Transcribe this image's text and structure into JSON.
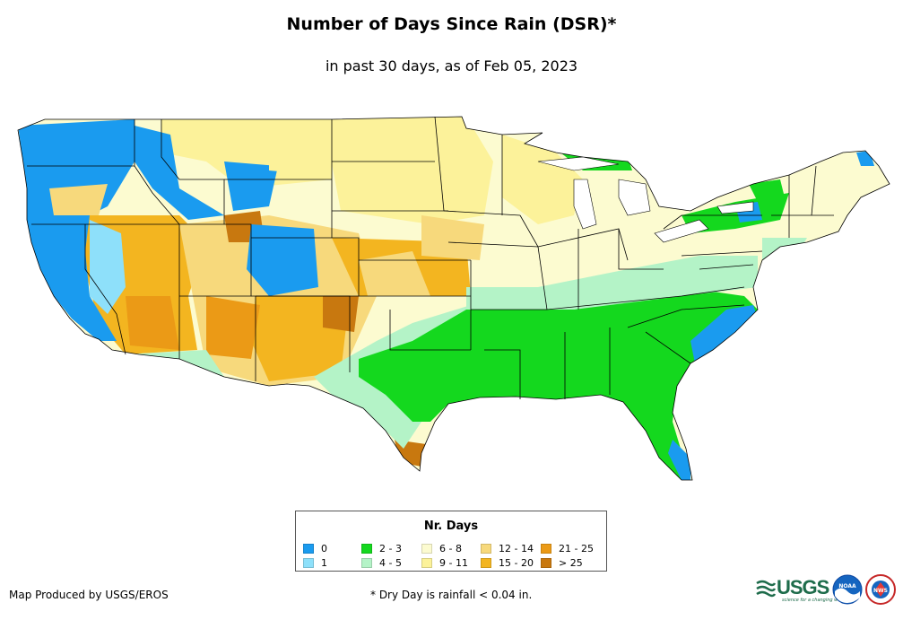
{
  "title": "Number of Days Since Rain (DSR)*",
  "subtitle": "in past 30 days, as of Feb 05, 2023",
  "legend": {
    "title": "Nr. Days",
    "items": [
      {
        "label": "0",
        "color": "#1a9bef"
      },
      {
        "label": "1",
        "color": "#8ee0fa"
      },
      {
        "label": "2 - 3",
        "color": "#14d81e"
      },
      {
        "label": "4 - 5",
        "color": "#b4f3c7"
      },
      {
        "label": "6 - 8",
        "color": "#fcfbd0"
      },
      {
        "label": "9 - 11",
        "color": "#fcf29a"
      },
      {
        "label": "12 - 14",
        "color": "#f7d97c"
      },
      {
        "label": "15 - 20",
        "color": "#f3b520"
      },
      {
        "label": "21 - 25",
        "color": "#eb9a16"
      },
      {
        "label": "> 25",
        "color": "#c8780f"
      }
    ]
  },
  "footer": {
    "producer": "Map Produced by USGS/EROS",
    "note": "* Dry Day is rainfall < 0.04 in."
  },
  "logos": {
    "usgs": "USGS",
    "usgs_tagline": "science for a changing world",
    "noaa": "NOAA",
    "nws": "NWS"
  }
}
